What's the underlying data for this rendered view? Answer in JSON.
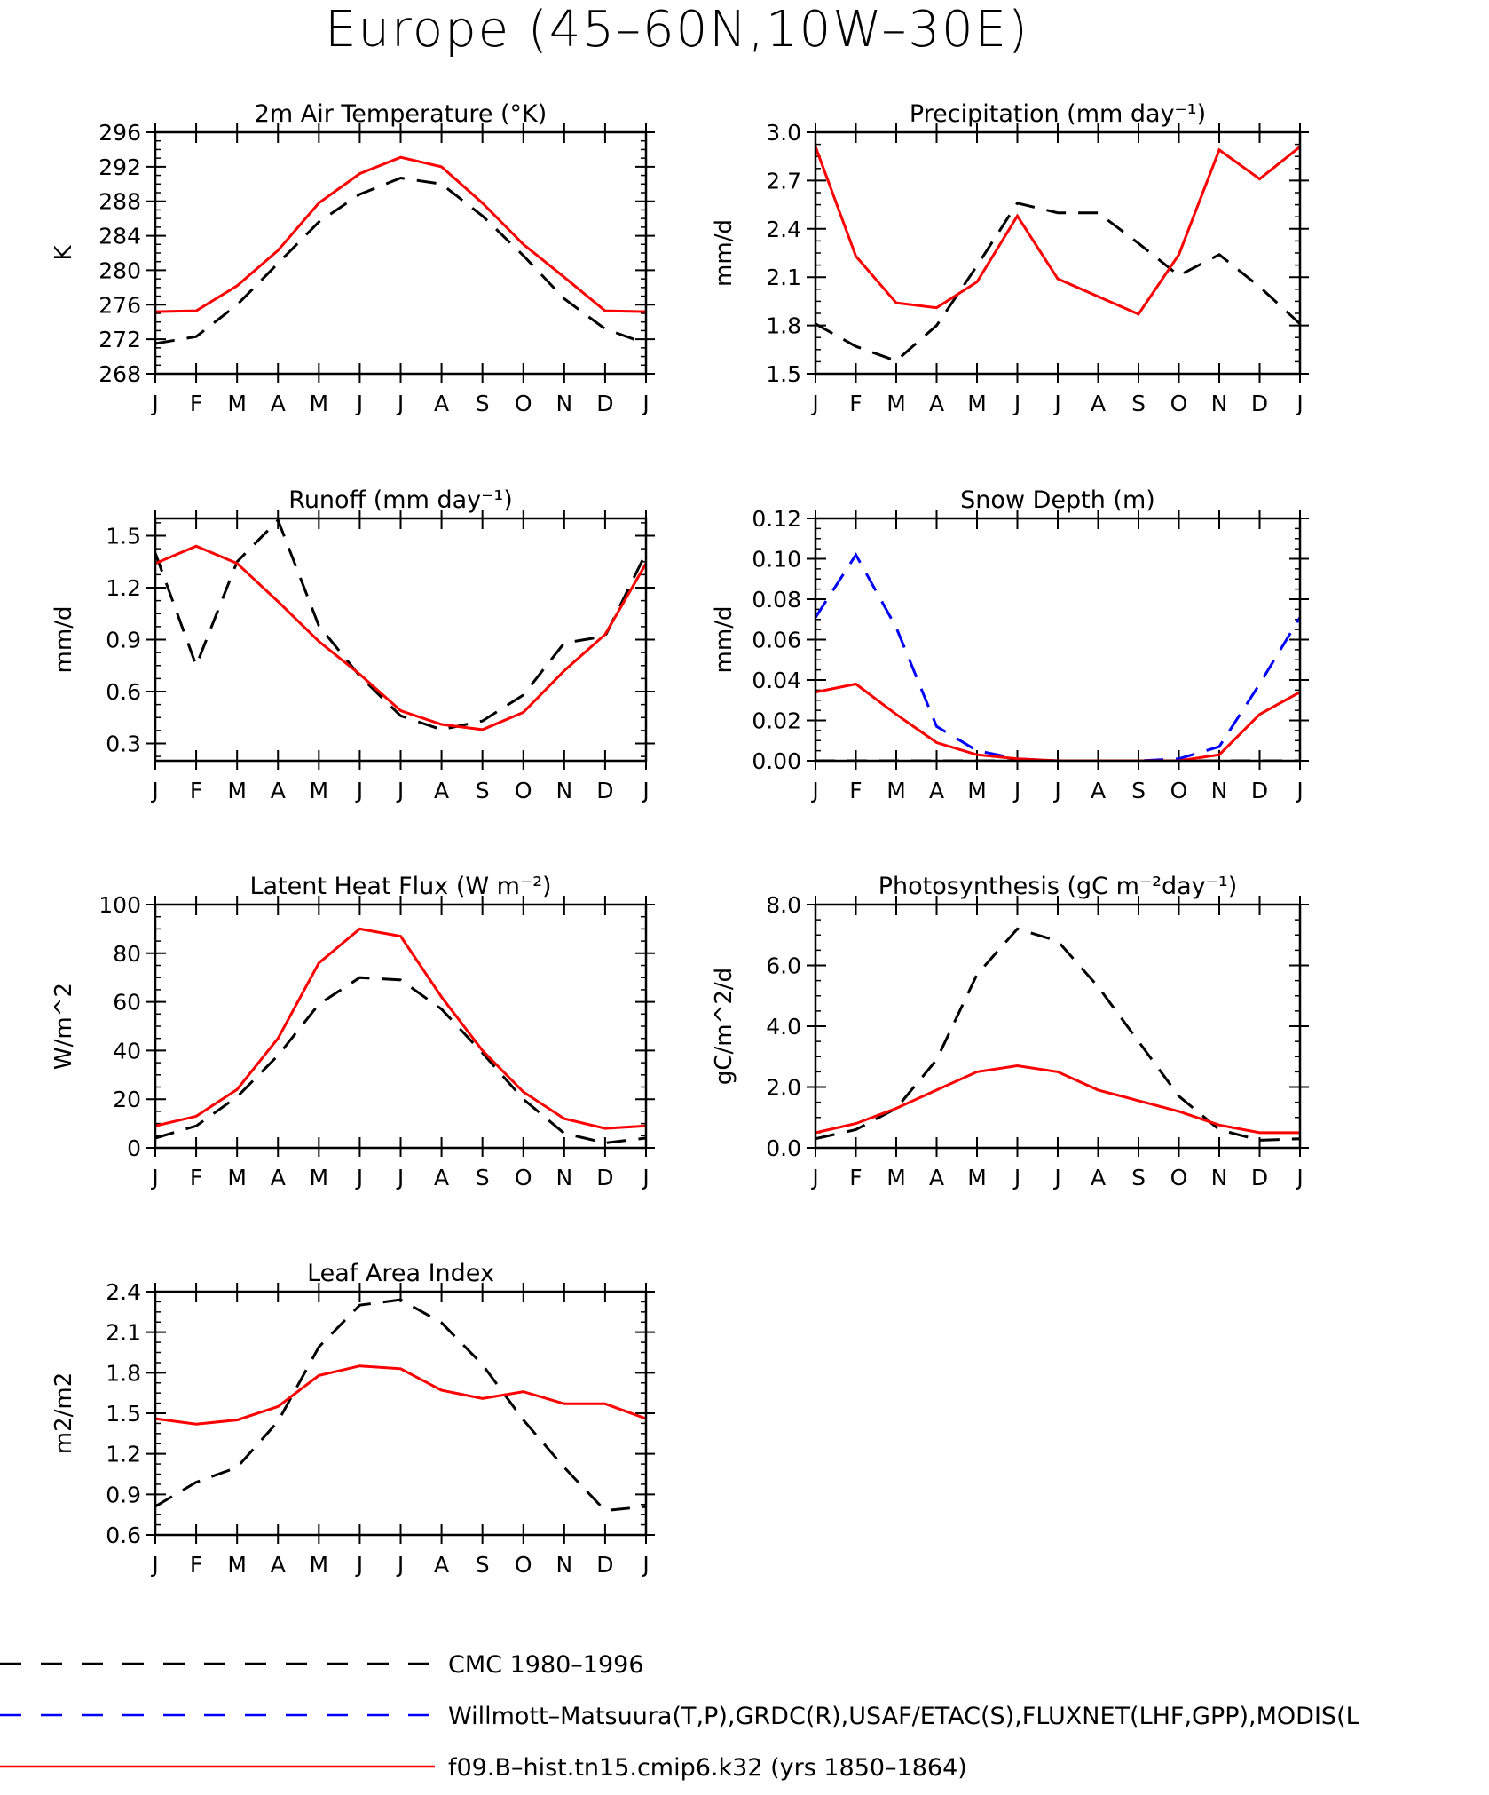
{
  "figure": {
    "title": "Europe (45–60N,10W–30E)"
  },
  "styles": {
    "obs": {
      "color": "#000000",
      "dash": "22 14"
    },
    "obs2": {
      "color": "#0000ff",
      "dash": "22 14"
    },
    "model": {
      "color": "#ff0000",
      "dash": ""
    }
  },
  "legend": [
    {
      "label": "CMC 1980–1996",
      "style": "obs"
    },
    {
      "label": "Willmott–Matsuura(T,P),GRDC(R),USAF/ETAC(S),FLUXNET(LHF,GPP),MODIS(L",
      "style": "obs2"
    },
    {
      "label": "f09.B–hist.tn15.cmip6.k32 (yrs 1850–1864)",
      "style": "model"
    }
  ],
  "chart_data": [
    {
      "type": "line",
      "title": "2m Air Temperature (°K)",
      "ylabel": "K",
      "ylim": [
        268,
        296
      ],
      "yticks": [
        "268",
        "272",
        "276",
        "280",
        "284",
        "288",
        "292",
        "296"
      ],
      "categories": [
        "J",
        "F",
        "M",
        "A",
        "M",
        "J",
        "J",
        "A",
        "S",
        "O",
        "N",
        "D",
        "J"
      ],
      "series": [
        {
          "style": "obs",
          "values": [
            271.5,
            272.3,
            276.0,
            280.8,
            285.6,
            288.8,
            290.7,
            290.0,
            286.3,
            281.7,
            276.7,
            273.2,
            271.5
          ]
        },
        {
          "style": "model",
          "values": [
            275.2,
            275.3,
            278.2,
            282.3,
            287.8,
            291.2,
            293.1,
            292.0,
            287.8,
            283.0,
            279.2,
            275.3,
            275.2
          ]
        }
      ]
    },
    {
      "type": "line",
      "title": "Precipitation (mm day⁻¹)",
      "ylabel": "mm/d",
      "ylim": [
        1.5,
        3.0
      ],
      "yticks": [
        "1.5",
        "1.8",
        "2.1",
        "2.4",
        "2.7",
        "3.0"
      ],
      "categories": [
        "J",
        "F",
        "M",
        "A",
        "M",
        "J",
        "J",
        "A",
        "S",
        "O",
        "N",
        "D",
        "J"
      ],
      "series": [
        {
          "style": "obs",
          "values": [
            1.81,
            1.67,
            1.58,
            1.8,
            2.17,
            2.56,
            2.5,
            2.5,
            2.31,
            2.11,
            2.24,
            2.04,
            1.81
          ]
        },
        {
          "style": "model",
          "values": [
            2.91,
            2.23,
            1.94,
            1.91,
            2.07,
            2.48,
            2.09,
            1.98,
            1.87,
            2.24,
            2.89,
            2.71,
            2.91
          ]
        }
      ]
    },
    {
      "type": "line",
      "title": "Runoff (mm day⁻¹)",
      "ylabel": "mm/d",
      "ylim": [
        0.2,
        1.6
      ],
      "yticks": [
        "0.3",
        "0.6",
        "0.9",
        "1.2",
        "1.5"
      ],
      "categories": [
        "J",
        "F",
        "M",
        "A",
        "M",
        "J",
        "J",
        "A",
        "S",
        "O",
        "N",
        "D",
        "J"
      ],
      "series": [
        {
          "style": "obs",
          "values": [
            1.4,
            0.75,
            1.35,
            1.59,
            0.98,
            0.69,
            0.46,
            0.38,
            0.43,
            0.58,
            0.88,
            0.92,
            1.4
          ]
        },
        {
          "style": "model",
          "values": [
            1.34,
            1.44,
            1.34,
            1.12,
            0.89,
            0.7,
            0.49,
            0.41,
            0.38,
            0.48,
            0.72,
            0.93,
            1.34
          ]
        }
      ]
    },
    {
      "type": "line",
      "title": "Snow Depth (m)",
      "ylabel": "mm/d",
      "ylim": [
        0.0,
        0.12
      ],
      "yticks": [
        "0.00",
        "0.02",
        "0.04",
        "0.06",
        "0.08",
        "0.10",
        "0.12"
      ],
      "categories": [
        "J",
        "F",
        "M",
        "A",
        "M",
        "J",
        "J",
        "A",
        "S",
        "O",
        "N",
        "D",
        "J"
      ],
      "series": [
        {
          "style": "obs",
          "values": [
            0,
            0,
            0,
            0,
            0,
            0,
            0,
            0,
            0,
            0,
            0,
            0,
            0
          ]
        },
        {
          "style": "obs2",
          "values": [
            0.071,
            0.102,
            0.066,
            0.017,
            0.005,
            0.001,
            0,
            0,
            0,
            0.001,
            0.007,
            0.038,
            0.071
          ]
        },
        {
          "style": "model",
          "values": [
            0.034,
            0.038,
            0.023,
            0.009,
            0.003,
            0.001,
            0,
            0,
            0,
            0,
            0.003,
            0.023,
            0.034
          ]
        }
      ]
    },
    {
      "type": "line",
      "title": "Latent Heat Flux (W m⁻²)",
      "ylabel": "W/m^2",
      "ylim": [
        0,
        100
      ],
      "yticks": [
        "0",
        "20",
        "40",
        "60",
        "80",
        "100"
      ],
      "categories": [
        "J",
        "F",
        "M",
        "A",
        "M",
        "J",
        "J",
        "A",
        "S",
        "O",
        "N",
        "D",
        "J"
      ],
      "series": [
        {
          "style": "obs",
          "values": [
            4,
            9,
            21,
            38,
            59,
            70,
            69,
            57,
            39,
            20,
            6,
            2,
            4
          ]
        },
        {
          "style": "model",
          "values": [
            9,
            13,
            24,
            45,
            76,
            90,
            87,
            62,
            40,
            23,
            12,
            8,
            9
          ]
        }
      ]
    },
    {
      "type": "line",
      "title": "Photosynthesis (gC m⁻²day⁻¹)",
      "ylabel": "gC/m^2/d",
      "ylim": [
        0.0,
        8.0
      ],
      "yticks": [
        "0.0",
        "2.0",
        "4.0",
        "6.0",
        "8.0"
      ],
      "categories": [
        "J",
        "F",
        "M",
        "A",
        "M",
        "J",
        "J",
        "A",
        "S",
        "O",
        "N",
        "D",
        "J"
      ],
      "series": [
        {
          "style": "obs",
          "values": [
            0.3,
            0.6,
            1.3,
            2.9,
            5.7,
            7.2,
            6.8,
            5.3,
            3.5,
            1.7,
            0.6,
            0.25,
            0.3
          ]
        },
        {
          "style": "model",
          "values": [
            0.5,
            0.8,
            1.3,
            1.9,
            2.5,
            2.7,
            2.5,
            1.9,
            1.55,
            1.2,
            0.75,
            0.5,
            0.5
          ]
        }
      ]
    },
    {
      "type": "line",
      "title": "Leaf Area Index",
      "ylabel": "m2/m2",
      "ylim": [
        0.6,
        2.4
      ],
      "yticks": [
        "0.6",
        "0.9",
        "1.2",
        "1.5",
        "1.8",
        "2.1",
        "2.4"
      ],
      "categories": [
        "J",
        "F",
        "M",
        "A",
        "M",
        "J",
        "J",
        "A",
        "S",
        "O",
        "N",
        "D",
        "J"
      ],
      "series": [
        {
          "style": "obs",
          "values": [
            0.81,
            0.99,
            1.1,
            1.44,
            1.99,
            2.3,
            2.34,
            2.17,
            1.86,
            1.45,
            1.1,
            0.78,
            0.81
          ]
        },
        {
          "style": "model",
          "values": [
            1.46,
            1.42,
            1.45,
            1.55,
            1.78,
            1.85,
            1.83,
            1.67,
            1.61,
            1.66,
            1.57,
            1.57,
            1.46
          ]
        }
      ]
    }
  ]
}
